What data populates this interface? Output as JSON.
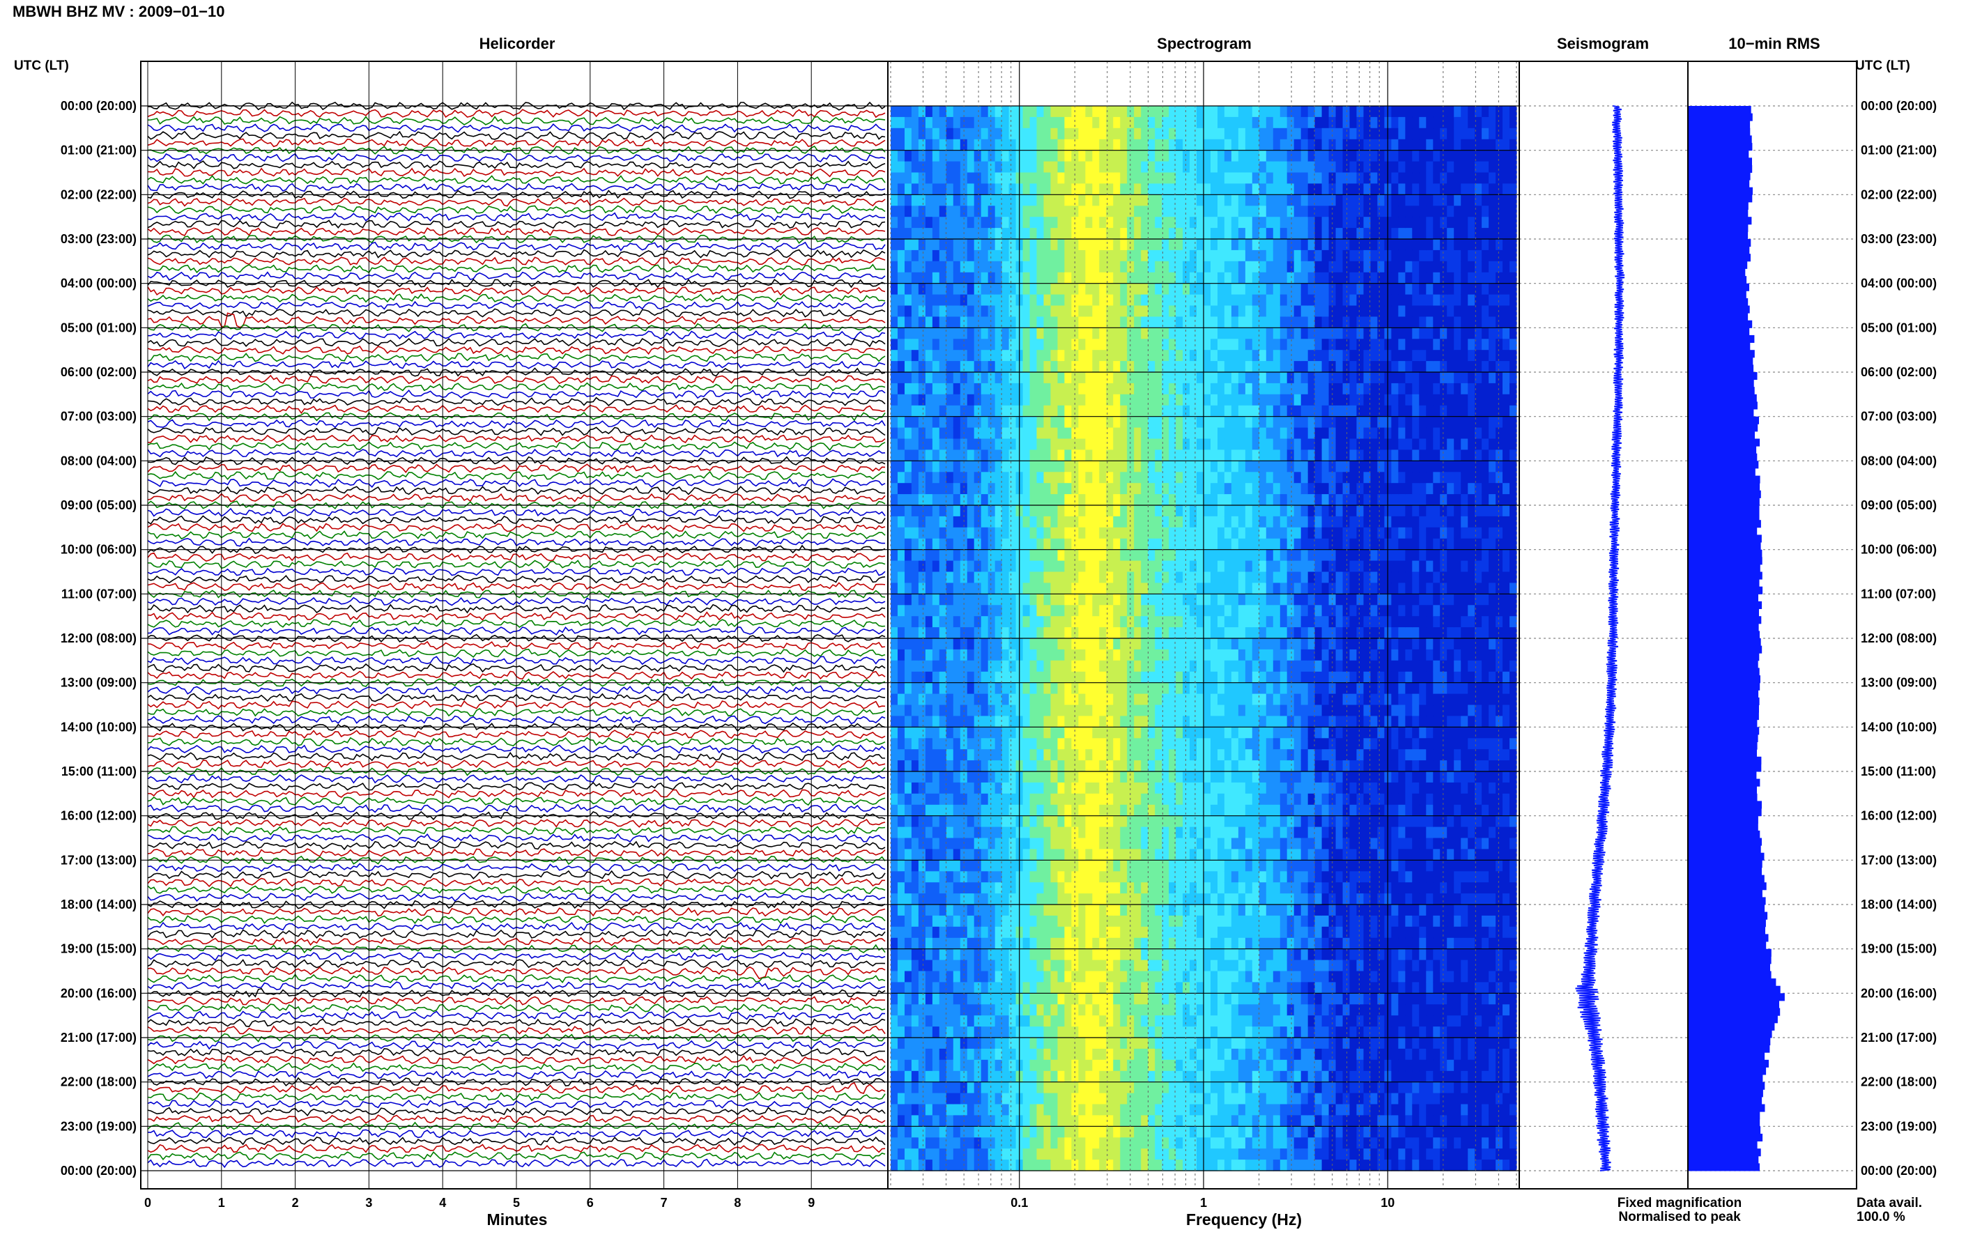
{
  "header": {
    "title": "MBWH BHZ MV : 2009−01−10",
    "utc_label_left": "UTC (LT)",
    "utc_label_right": "UTC (LT)"
  },
  "panels": {
    "helicorder_title": "Helicorder",
    "spectrogram_title": "Spectrogram",
    "seismogram_title": "Seismogram",
    "rms_title": "10−min RMS"
  },
  "axes": {
    "helicorder_xlabel": "Minutes",
    "spectrogram_xlabel": "Frequency (Hz)"
  },
  "legend": {
    "fixed": "Fixed magnification",
    "normalised": "Normalised to peak",
    "fixed_color": "#1010ff",
    "normalised_color": "#ff1010"
  },
  "data_avail": {
    "label": "Data avail.",
    "value": "100.0 %"
  },
  "colors": {
    "trace_cycle": [
      "#000000",
      "#c00000",
      "#008000",
      "#0000d0"
    ],
    "seismogram": "#0a1aff",
    "rms_bar": "#0a1aff",
    "spectrogram_scale": [
      "#00d8ff",
      "#40f0ff",
      "#a0f060",
      "#ffff20",
      "#90e8c0",
      "#30c8ff",
      "#1a7cff",
      "#1040f0",
      "#0820c8"
    ]
  },
  "chart_data": [
    {
      "type": "line",
      "name": "helicorder",
      "title": "Helicorder",
      "xlabel": "Minutes",
      "x_ticks": [
        0,
        1,
        2,
        3,
        4,
        5,
        6,
        7,
        8,
        9
      ],
      "xlim": [
        0,
        10
      ],
      "rows": 144,
      "row_minutes": 10,
      "y_tick_labels": [
        "00:00 (20:00)",
        "01:00 (21:00)",
        "02:00 (22:00)",
        "03:00 (23:00)",
        "04:00 (00:00)",
        "05:00 (01:00)",
        "06:00 (02:00)",
        "07:00 (03:00)",
        "08:00 (04:00)",
        "09:00 (05:00)",
        "10:00 (06:00)",
        "11:00 (07:00)",
        "12:00 (08:00)",
        "13:00 (09:00)",
        "14:00 (10:00)",
        "15:00 (11:00)",
        "16:00 (12:00)",
        "17:00 (13:00)",
        "18:00 (14:00)",
        "19:00 (15:00)",
        "20:00 (16:00)",
        "21:00 (17:00)",
        "22:00 (18:00)",
        "23:00 (19:00)",
        "00:00 (20:00)"
      ],
      "events": [
        {
          "row": 29,
          "minute": 1.2,
          "amp": 2.4
        },
        {
          "row": 117,
          "minute": 8.4,
          "amp": 2.2
        },
        {
          "row": 120,
          "minute": 1.4,
          "amp": 1.2
        },
        {
          "row": 133,
          "minute": 9.6,
          "amp": 1.4
        }
      ]
    },
    {
      "type": "heatmap",
      "name": "spectrogram",
      "title": "Spectrogram",
      "xlabel": "Frequency (Hz)",
      "x_scale": "log",
      "xlim": [
        0.02,
        50
      ],
      "x_tick_labels": [
        "0.1",
        "1",
        "10"
      ],
      "x_tick_values": [
        0.1,
        1,
        10
      ],
      "hours": 24,
      "frequency_bands": [
        {
          "f": 0.02,
          "level": 1
        },
        {
          "f": 0.06,
          "level": 1
        },
        {
          "f": 0.1,
          "level": 2
        },
        {
          "f": 0.15,
          "level": 3
        },
        {
          "f": 0.25,
          "level": 4
        },
        {
          "f": 0.4,
          "level": 3
        },
        {
          "f": 0.8,
          "level": 2
        },
        {
          "f": 2,
          "level": 1.5
        },
        {
          "f": 3.5,
          "level": 0.8
        },
        {
          "f": 6,
          "level": 0.3
        },
        {
          "f": 50,
          "level": 0.2
        }
      ]
    },
    {
      "type": "line",
      "name": "seismogram",
      "title": "Seismogram",
      "hours": [
        0,
        2,
        4,
        6,
        8,
        10,
        12,
        14,
        16,
        18,
        19.5,
        20,
        21,
        22,
        23,
        24
      ],
      "offset": [
        0.25,
        0.28,
        0.3,
        0.28,
        0.24,
        0.2,
        0.18,
        0.12,
        0.0,
        -0.15,
        -0.25,
        -0.3,
        -0.15,
        -0.05,
        0.0,
        0.05
      ],
      "amplitude": [
        0.5,
        0.5,
        0.5,
        0.5,
        0.5,
        0.5,
        0.55,
        0.6,
        0.6,
        0.65,
        0.7,
        1.3,
        0.8,
        0.7,
        0.7,
        0.6
      ]
    },
    {
      "type": "bar",
      "name": "rms",
      "title": "10−min RMS",
      "hours": [
        0,
        3,
        4,
        6,
        8,
        10,
        12,
        14,
        16,
        18,
        19.5,
        20,
        21,
        22,
        24
      ],
      "rms": [
        0.45,
        0.45,
        0.42,
        0.48,
        0.5,
        0.52,
        0.52,
        0.5,
        0.52,
        0.55,
        0.6,
        0.7,
        0.58,
        0.55,
        0.5
      ]
    }
  ]
}
